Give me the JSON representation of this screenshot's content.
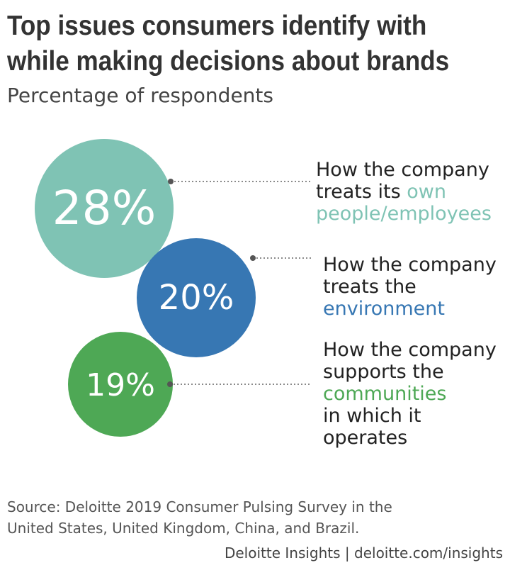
{
  "chart_data": {
    "type": "bubble",
    "title": "Top issues consumers identify with while making decisions about brands",
    "title_lines": [
      "Top issues consumers identify with",
      "while making decisions about brands"
    ],
    "subtitle": "Percentage of respondents",
    "unit": "%",
    "items": [
      {
        "value": 28,
        "label": "28%",
        "color": "#7fc3b4",
        "text_lines": [
          {
            "plain": "How the company",
            "highlight": ""
          },
          {
            "plain": "treats its ",
            "highlight": "own"
          },
          {
            "plain": "",
            "highlight": "people/employees"
          }
        ]
      },
      {
        "value": 20,
        "label": "20%",
        "color": "#3777b3",
        "text_lines": [
          {
            "plain": "How the company",
            "highlight": ""
          },
          {
            "plain": "treats the",
            "highlight": ""
          },
          {
            "plain": "",
            "highlight": "environment"
          }
        ]
      },
      {
        "value": 19,
        "label": "19%",
        "color": "#4ea855",
        "text_lines": [
          {
            "plain": "How the company",
            "highlight": ""
          },
          {
            "plain": "supports the",
            "highlight": ""
          },
          {
            "plain": "",
            "highlight": "communities"
          },
          {
            "plain": "in which it",
            "highlight": ""
          },
          {
            "plain": "operates",
            "highlight": ""
          }
        ]
      }
    ],
    "source_lines": [
      "Source: Deloitte 2019 Consumer Pulsing Survey in the",
      "United States, United Kingdom, China, and Brazil."
    ],
    "credit": "Deloitte Insights | deloitte.com/insights"
  }
}
